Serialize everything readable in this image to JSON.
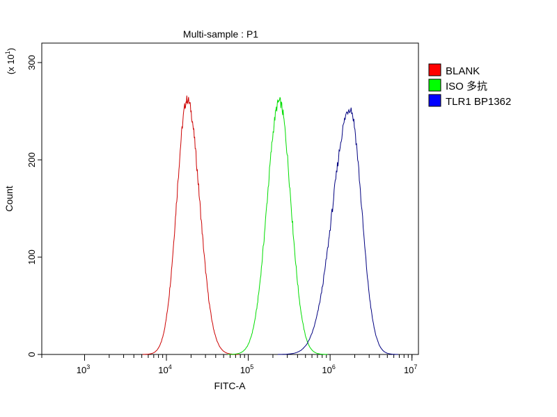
{
  "chart_data": {
    "type": "line",
    "title": "Multi-sample : P1",
    "xlabel": "FITC-A",
    "ylabel": "Count",
    "y_multiplier": {
      "base": "(x 10",
      "exp": "1",
      "close": ")"
    },
    "x_scale": "log",
    "xlim": [
      300,
      12000000
    ],
    "ylim": [
      0,
      320
    ],
    "x_ticks": [
      {
        "base": "10",
        "exp": "3",
        "value": 1000
      },
      {
        "base": "10",
        "exp": "4",
        "value": 10000
      },
      {
        "base": "10",
        "exp": "5",
        "value": 100000
      },
      {
        "base": "10",
        "exp": "6",
        "value": 1000000
      },
      {
        "base": "10",
        "exp": "7",
        "value": 10000000
      }
    ],
    "y_ticks": [
      {
        "label": "0",
        "value": 0
      },
      {
        "label": "100",
        "value": 100
      },
      {
        "label": "200",
        "value": 200
      },
      {
        "label": "300",
        "value": 300
      }
    ],
    "grid": false,
    "legend_position": "right",
    "series": [
      {
        "name": "BLANK",
        "color": "#cc0000",
        "legend_color": "#ff0000",
        "peak_x": 18000,
        "peak_y": 262,
        "log_sigma_left": 0.13,
        "log_sigma_right": 0.15
      },
      {
        "name": "ISO 多抗",
        "color": "#00dd00",
        "legend_color": "#00ff00",
        "peak_x": 240000,
        "peak_y": 260,
        "log_sigma_left": 0.15,
        "log_sigma_right": 0.14
      },
      {
        "name": "TLR1 BP1362",
        "color": "#000080",
        "legend_color": "#0000ff",
        "peak_x": 1750000,
        "peak_y": 253,
        "log_sigma_left": 0.21,
        "log_sigma_right": 0.14
      }
    ]
  }
}
